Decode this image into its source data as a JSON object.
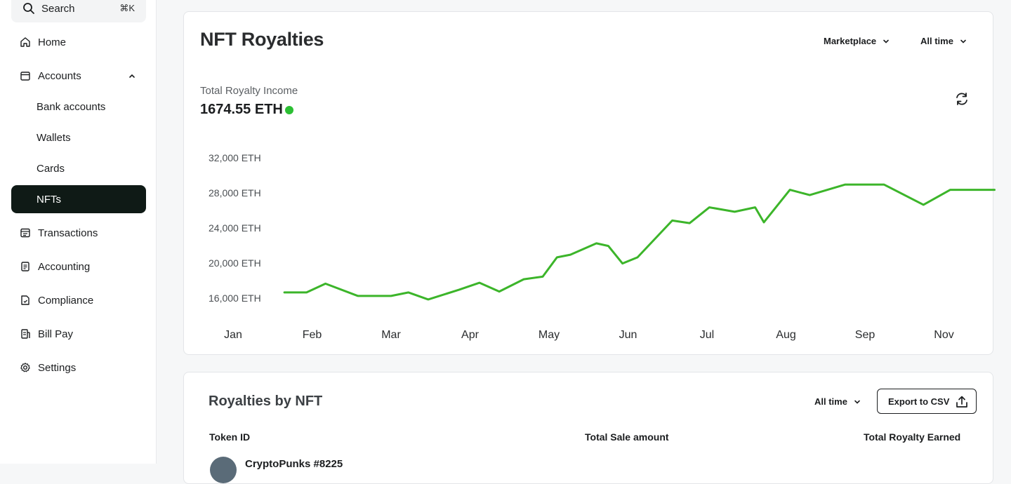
{
  "sidebar": {
    "search": {
      "label": "Search",
      "shortcut": "⌘K"
    },
    "items": [
      {
        "label": "Home",
        "icon": "home-icon"
      },
      {
        "label": "Accounts",
        "icon": "wallet-icon",
        "expanded": true
      },
      {
        "label": "Bank accounts"
      },
      {
        "label": "Wallets"
      },
      {
        "label": "Cards"
      },
      {
        "label": "NFTs",
        "active": true
      },
      {
        "label": "Transactions",
        "icon": "ledger-icon"
      },
      {
        "label": "Accounting",
        "icon": "document-icon"
      },
      {
        "label": "Compliance",
        "icon": "compliance-icon"
      },
      {
        "label": "Bill Pay",
        "icon": "bill-icon"
      },
      {
        "label": "Settings",
        "icon": "gear-icon"
      }
    ]
  },
  "royalties_card": {
    "title": "NFT Royalties",
    "filter_marketplace": "Marketplace",
    "filter_time": "All time",
    "total_label": "Total Royalty Income",
    "total_value": "1674.55 ETH",
    "status_color": "#2cbf34"
  },
  "chart_data": {
    "type": "line",
    "x_labels": [
      "Jan",
      "Feb",
      "Mar",
      "Apr",
      "May",
      "Jun",
      "Jul",
      "Aug",
      "Sep",
      "Nov"
    ],
    "y_tick_labels": [
      "32,000 ETH",
      "28,000 ETH",
      "24,000 ETH",
      "20,000 ETH",
      "16,000 ETH"
    ],
    "y_ticks": [
      32000,
      28000,
      24000,
      20000,
      16000
    ],
    "ylim": [
      14000,
      33000
    ],
    "grid": false,
    "line_color": "#3cb52a",
    "series": [
      {
        "x": [
          0.65,
          0.93,
          1.17,
          1.58,
          2.0,
          2.22,
          2.47,
          2.86,
          3.12,
          3.37,
          3.68,
          3.92,
          4.1,
          4.27,
          4.6,
          4.75,
          4.93,
          5.12,
          5.56,
          5.78,
          6.03,
          6.35,
          6.61,
          6.72,
          7.05,
          7.3,
          7.75,
          8.0,
          8.24,
          8.74,
          9.08,
          9.26,
          9.64
        ],
        "y": [
          16650,
          16650,
          17650,
          16250,
          16250,
          16650,
          15850,
          16950,
          17750,
          16750,
          18150,
          18450,
          20650,
          20950,
          22250,
          21950,
          19950,
          20650,
          24850,
          24550,
          26350,
          25850,
          26350,
          24650,
          28350,
          27750,
          28950,
          28950,
          28950,
          26650,
          28350,
          28350,
          28350
        ]
      }
    ]
  },
  "nft_table": {
    "title": "Royalties by NFT",
    "filter_time": "All time",
    "export_label": "Export to CSV",
    "columns": [
      "Token ID",
      "Total Sale amount",
      "Total Royalty Earned"
    ],
    "first_row_name": "CryptoPunks #8225"
  }
}
